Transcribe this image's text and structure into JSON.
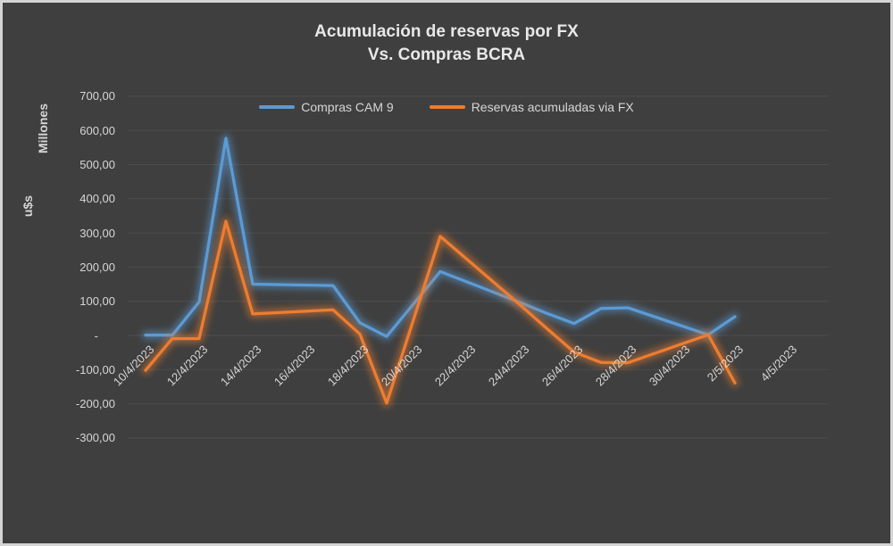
{
  "header": {
    "title_line1": "Acumulación de reservas por FX",
    "title_line2": "Vs. Compras BCRA"
  },
  "y_axis": {
    "unit_line1": "Millones",
    "unit_line2": "u$s"
  },
  "colors": {
    "background": "#3F3F3F",
    "frame_border": "#D4D4D4",
    "gridline": "#4D4D4D",
    "title_text": "#E8E8E8",
    "label_text": "#D6D6D6",
    "series_blue": "#5B9BD5",
    "series_orange": "#ED7D31"
  },
  "chart_data": {
    "type": "line",
    "title": "Acumulación de reservas por FX Vs. Compras BCRA",
    "xlabel": "",
    "ylabel": "u$s Millones",
    "grid": "horizontal",
    "legend_position": "top",
    "ylim": [
      -300,
      700
    ],
    "x_dates": [
      "10/4/2023",
      "11/4/2023",
      "12/4/2023",
      "13/4/2023",
      "14/4/2023",
      "17/4/2023",
      "18/4/2023",
      "19/4/2023",
      "20/4/2023",
      "21/4/2023",
      "24/4/2023",
      "25/4/2023",
      "26/4/2023",
      "27/4/2023",
      "28/4/2023",
      "1/5/2023",
      "2/5/2023"
    ],
    "series": [
      {
        "name": "Compras CAM 9",
        "color": "#5B9BD5",
        "values": [
          1,
          1,
          98,
          577,
          150,
          146,
          37,
          -3,
          92,
          187,
          96,
          64,
          35,
          79,
          81,
          2,
          55
        ]
      },
      {
        "name": "Reservas acumuladas via FX",
        "color": "#ED7D31",
        "values": [
          -102,
          -9,
          -9,
          334,
          63,
          75,
          4,
          -198,
          46,
          290,
          88,
          19,
          -49,
          -79,
          -80,
          2,
          -139
        ]
      }
    ],
    "x_tick_labels": [
      "10/4/2023",
      "12/4/2023",
      "14/4/2023",
      "16/4/2023",
      "18/4/2023",
      "20/4/2023",
      "22/4/2023",
      "24/4/2023",
      "26/4/2023",
      "28/4/2023",
      "30/4/2023",
      "2/5/2023",
      "4/5/2023"
    ],
    "y_ticks": [
      {
        "label": "700,00",
        "value": 700
      },
      {
        "label": "600,00",
        "value": 600
      },
      {
        "label": "500,00",
        "value": 500
      },
      {
        "label": "400,00",
        "value": 400
      },
      {
        "label": "300,00",
        "value": 300
      },
      {
        "label": "200,00",
        "value": 200
      },
      {
        "label": "100,00",
        "value": 100
      },
      {
        "label": "-",
        "value": 0
      },
      {
        "label": "-100,00",
        "value": -100
      },
      {
        "label": "-200,00",
        "value": -200
      },
      {
        "label": "-300,00",
        "value": -300
      }
    ]
  }
}
